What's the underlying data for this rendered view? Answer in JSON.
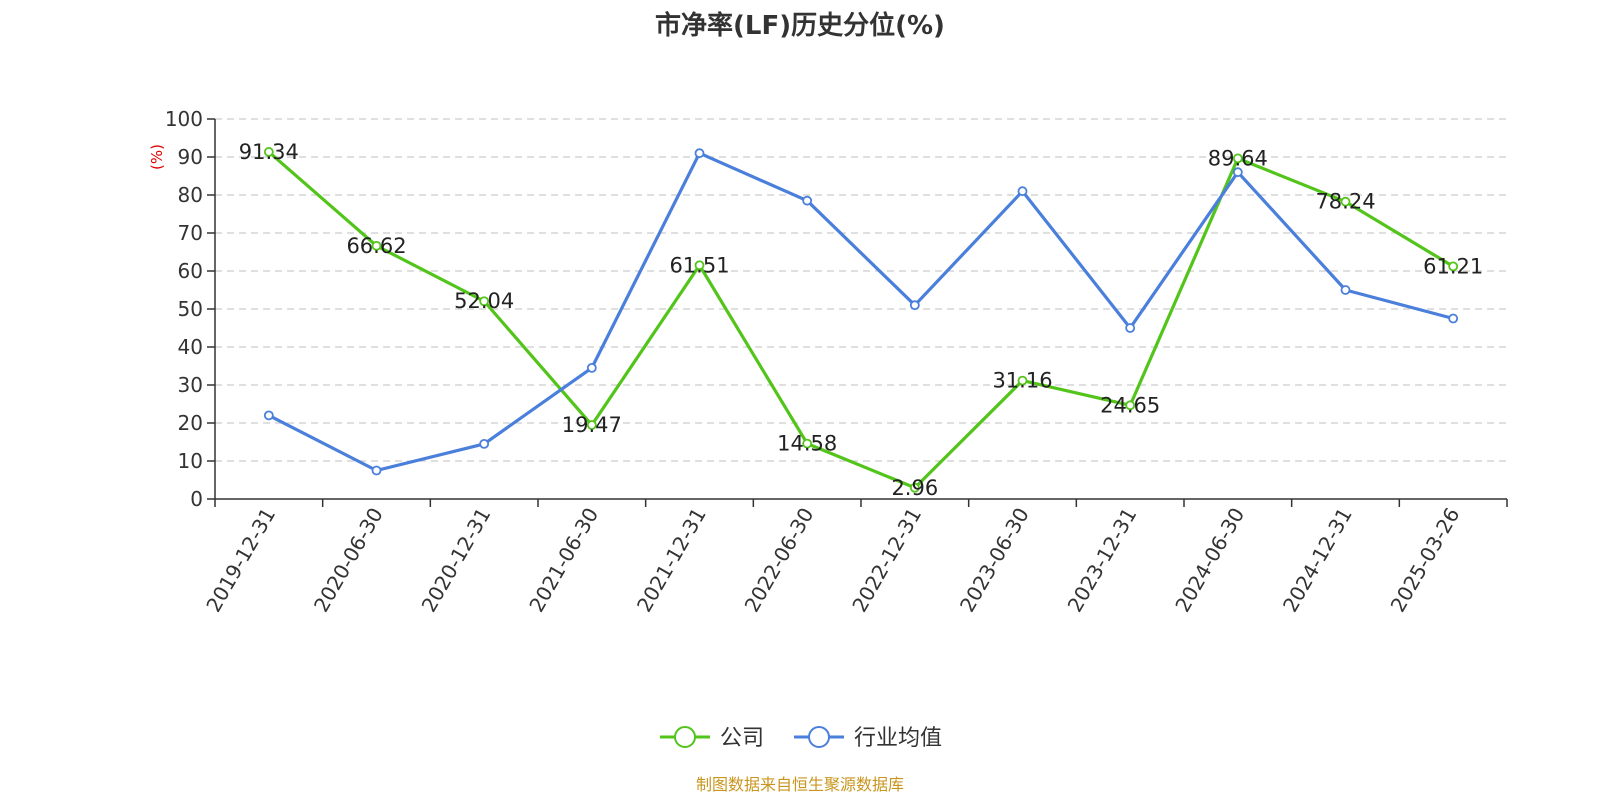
{
  "chart_data": {
    "type": "line",
    "title": "市净率(LF)历史分位(%)",
    "ylabel": "(%)",
    "xlabel": "",
    "ylim": [
      0,
      100
    ],
    "yticks": [
      0,
      10,
      20,
      30,
      40,
      50,
      60,
      70,
      80,
      90,
      100
    ],
    "grid": true,
    "legend_position": "bottom-center",
    "categories": [
      "2019-12-31",
      "2020-06-30",
      "2020-12-31",
      "2021-06-30",
      "2021-12-31",
      "2022-06-30",
      "2022-12-31",
      "2023-06-30",
      "2023-12-31",
      "2024-06-30",
      "2024-12-31",
      "2025-03-26"
    ],
    "series": [
      {
        "name": "公司",
        "color": "#52c41a",
        "show_labels": true,
        "values": [
          91.34,
          66.62,
          52.04,
          19.47,
          61.51,
          14.58,
          2.96,
          31.16,
          24.65,
          89.64,
          78.24,
          61.21
        ]
      },
      {
        "name": "行业均值",
        "color": "#4a7fdb",
        "show_labels": false,
        "values": [
          22,
          7.5,
          14.5,
          34.5,
          91,
          78.5,
          51,
          81,
          45,
          86,
          55,
          47.5
        ]
      }
    ]
  },
  "colors": {
    "ylabel": "#e00000",
    "source": "#c8961e",
    "grid": "#cccccc",
    "axis": "#333333"
  },
  "source": "制图数据来自恒生聚源数据库"
}
